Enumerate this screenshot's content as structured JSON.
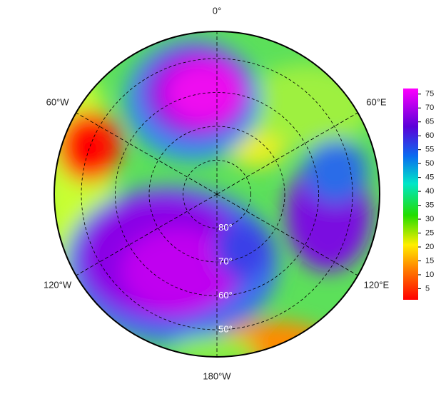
{
  "map": {
    "type": "polar",
    "lat_lim": [
      90,
      42
    ],
    "lat_ticks": [
      {
        "value": 80,
        "label": "80°"
      },
      {
        "value": 70,
        "label": "70°"
      },
      {
        "value": 60,
        "label": "60°"
      },
      {
        "value": 50,
        "label": "50°"
      }
    ],
    "lon_ticks": [
      {
        "value": 0,
        "label": "0°"
      },
      {
        "value": 60,
        "label": "60°E"
      },
      {
        "value": 120,
        "label": "120°E"
      },
      {
        "value": 180,
        "label": "180°W"
      },
      {
        "value": -120,
        "label": "120°W"
      },
      {
        "value": -60,
        "label": "60°W"
      }
    ],
    "colorbar": {
      "lim": [
        1,
        77
      ],
      "ticks": [
        5,
        10,
        15,
        20,
        25,
        30,
        35,
        40,
        45,
        50,
        55,
        60,
        65,
        70,
        75
      ]
    }
  }
}
